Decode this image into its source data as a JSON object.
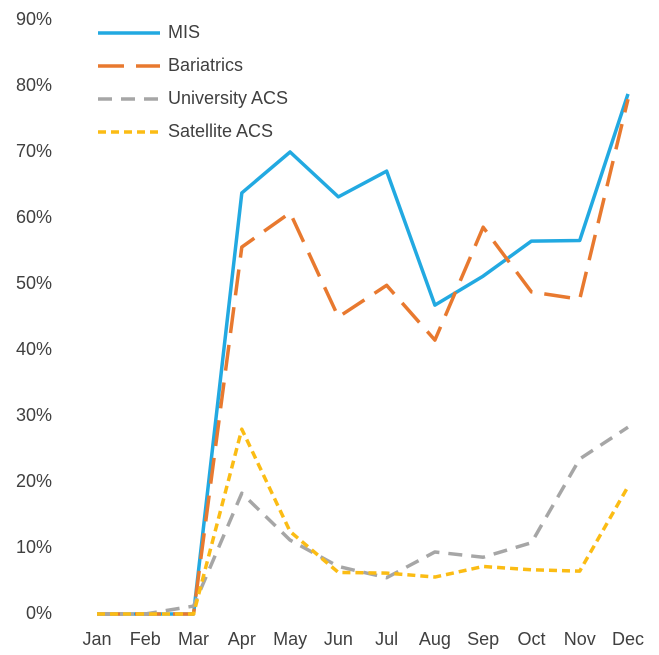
{
  "chart_data": {
    "type": "line",
    "categories": [
      "Jan",
      "Feb",
      "Mar",
      "Apr",
      "May",
      "Jun",
      "Jul",
      "Aug",
      "Sep",
      "Oct",
      "Nov",
      "Dec"
    ],
    "series": [
      {
        "name": "MIS",
        "color": "#22a9e1",
        "dash": "solid",
        "values": [
          0,
          0,
          0,
          63.8,
          70,
          63.2,
          67.1,
          46.8,
          51.2,
          56.5,
          56.6,
          78.8
        ]
      },
      {
        "name": "Bariatrics",
        "color": "#e8792f",
        "dash": "long",
        "values": [
          0,
          0,
          0,
          55.6,
          60.8,
          45,
          49.8,
          41.5,
          58.6,
          48.8,
          47.7,
          78
        ]
      },
      {
        "name": "University ACS",
        "color": "#a6a6a6",
        "dash": "medium",
        "values": [
          0,
          0,
          1.2,
          18.3,
          11.2,
          7.2,
          5.5,
          9.4,
          8.6,
          10.8,
          23.5,
          28.3
        ]
      },
      {
        "name": "Satellite ACS",
        "color": "#fbbc14",
        "dash": "short",
        "values": [
          0,
          0,
          0,
          28,
          12.5,
          6.3,
          6.2,
          5.6,
          7.2,
          6.7,
          6.5,
          19.3
        ]
      }
    ],
    "ylim": [
      0,
      90
    ],
    "yticks": [
      {
        "value": 0,
        "label": "0%"
      },
      {
        "value": 10,
        "label": "10%"
      },
      {
        "value": 20,
        "label": "20%"
      },
      {
        "value": 30,
        "label": "30%"
      },
      {
        "value": 40,
        "label": "40%"
      },
      {
        "value": 50,
        "label": "50%"
      },
      {
        "value": 60,
        "label": "60%"
      },
      {
        "value": 70,
        "label": "70%"
      },
      {
        "value": 80,
        "label": "80%"
      },
      {
        "value": 90,
        "label": "90%"
      }
    ],
    "grid": false,
    "legend": "upper left"
  }
}
